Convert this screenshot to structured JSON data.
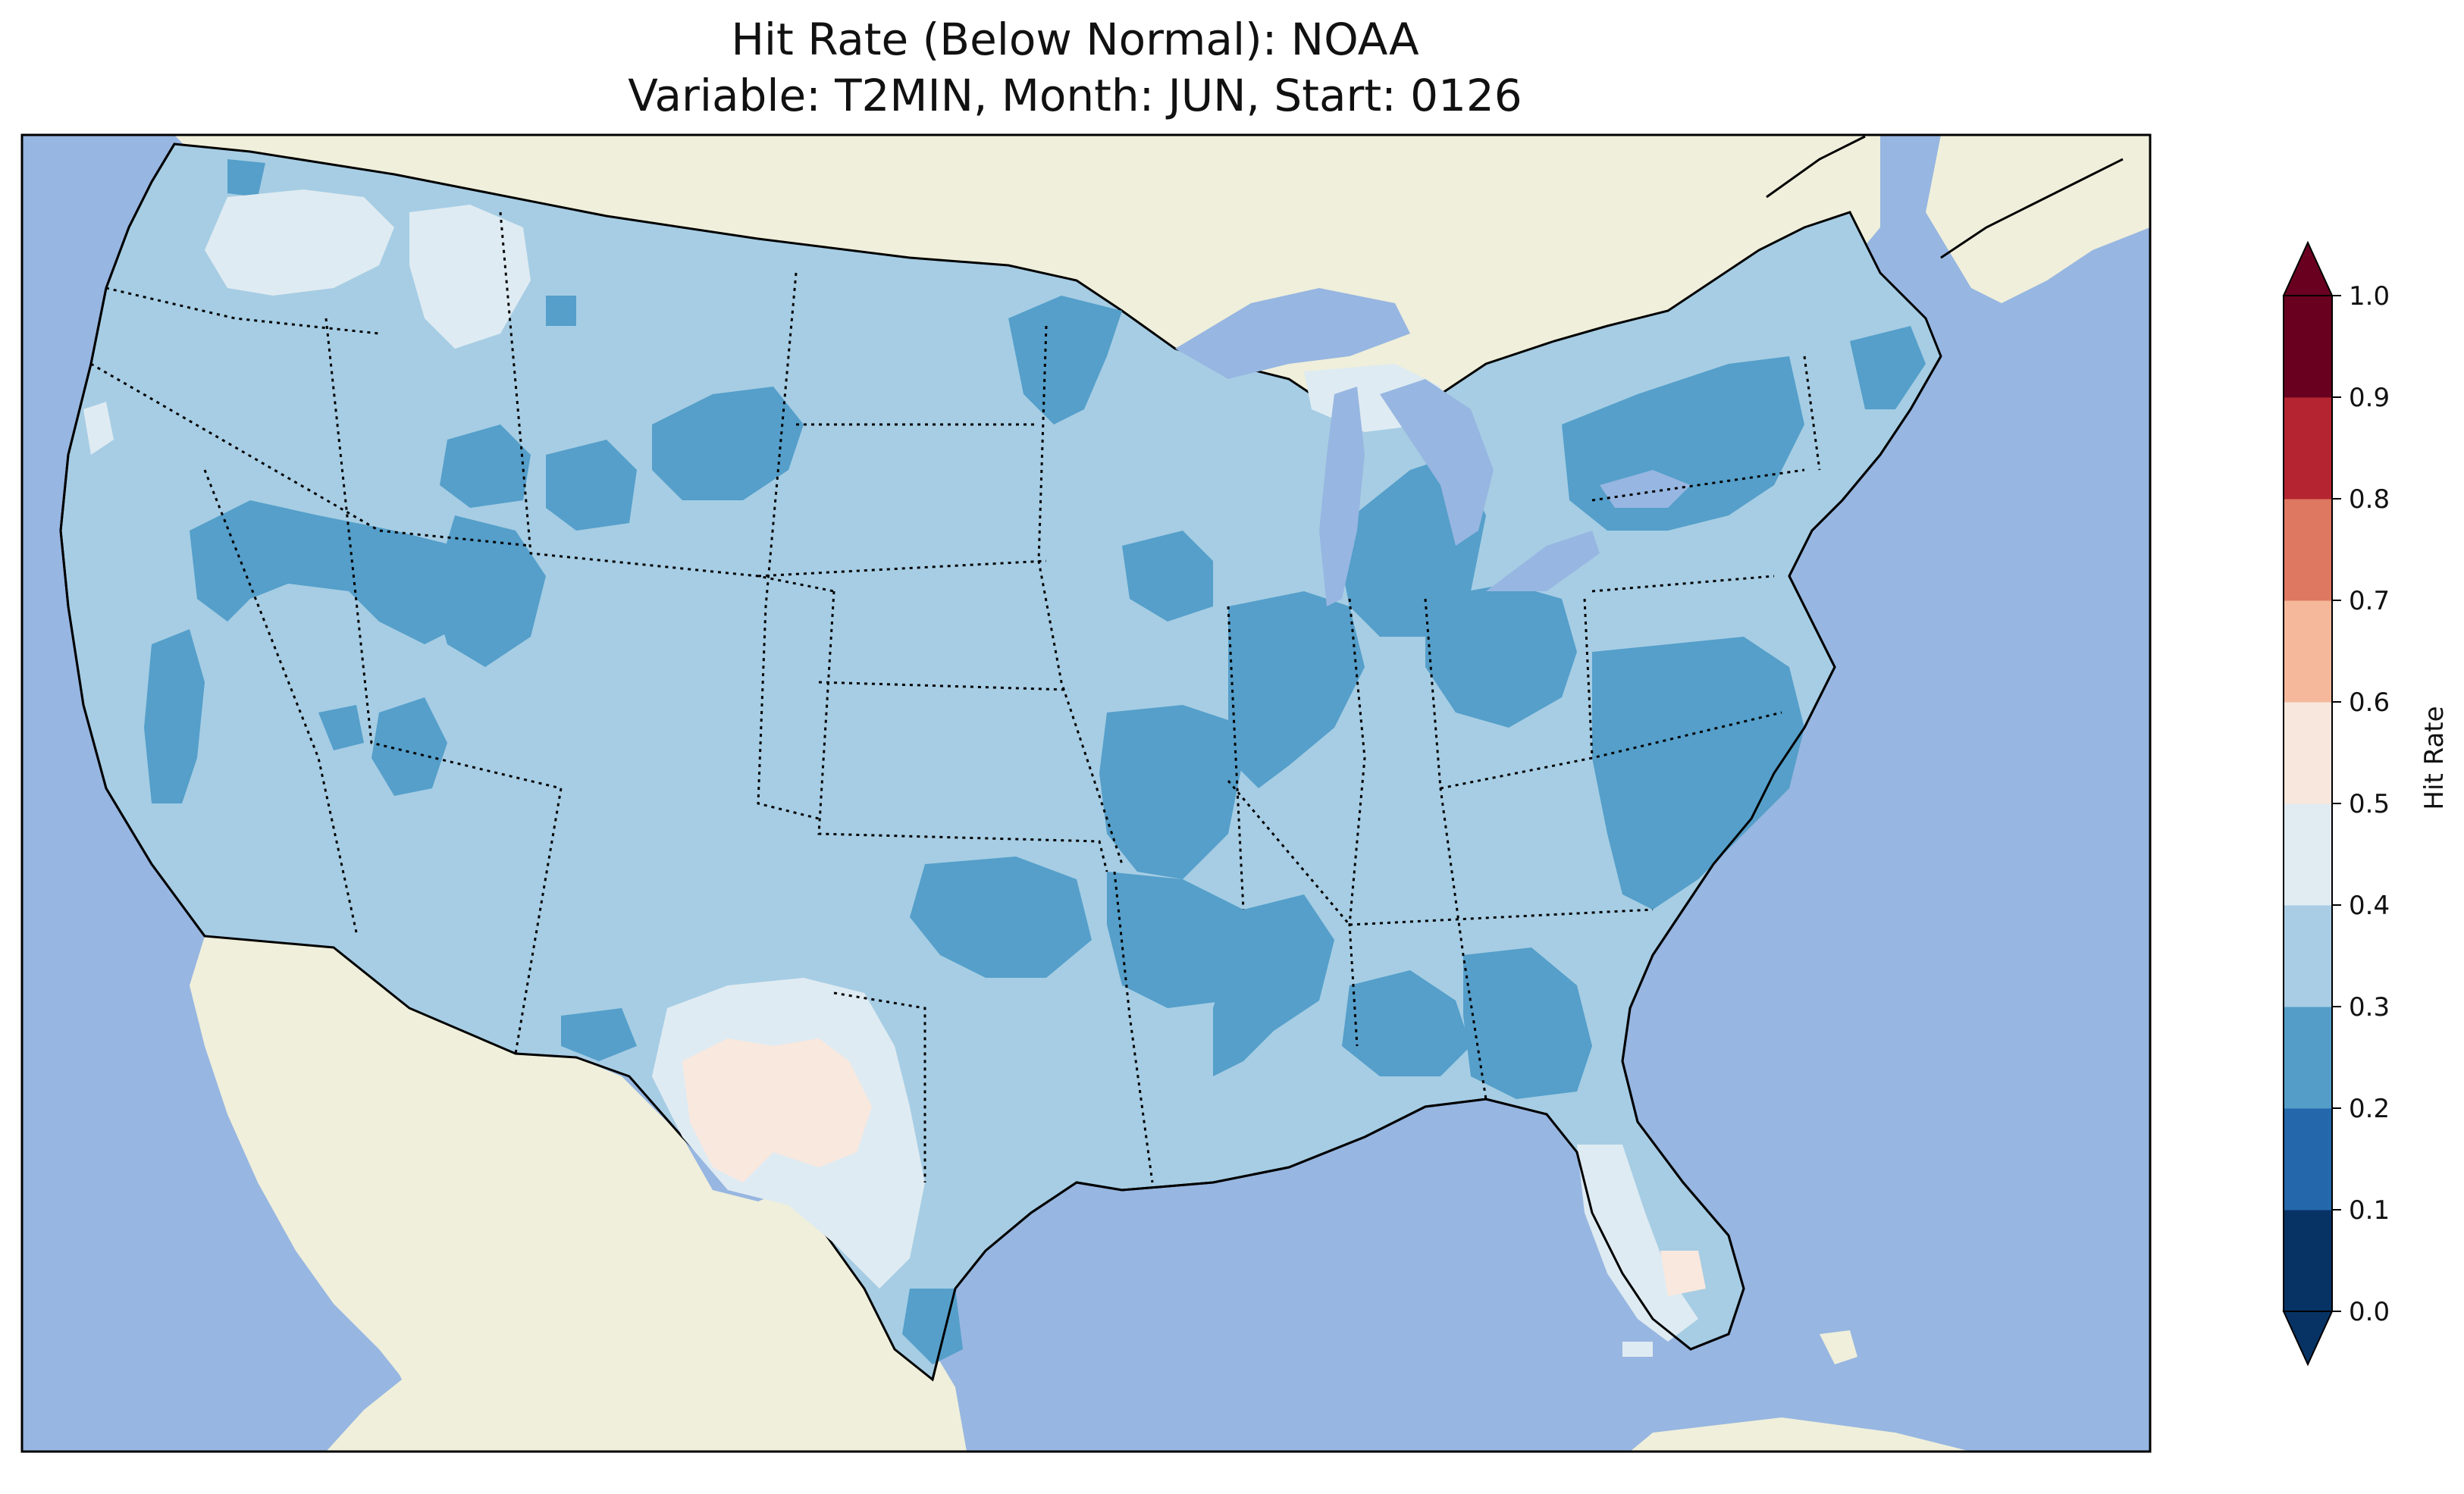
{
  "title_line1": "Hit Rate (Below Normal): NOAA",
  "title_line2": "Variable: T2MIN, Month: JUN, Start: 0126",
  "map": {
    "ocean_color": "#97b6e1",
    "land_color": "#efefdb",
    "regions": [
      {
        "name": "conus-base",
        "value_class": "0.3-0.4",
        "color": "#a6cde4"
      },
      {
        "name": "great-basin-band",
        "value_class": "0.2-0.3",
        "color": "#559fca"
      },
      {
        "name": "northern-rockies",
        "value_class": "0.4-0.5",
        "color": "#dfebf2"
      },
      {
        "name": "texas-center",
        "value_class": "0.5-0.6",
        "color": "#f9e8de"
      },
      {
        "name": "florida-center",
        "value_class": "0.5-0.6",
        "color": "#f9e8de"
      }
    ]
  },
  "colorbar": {
    "label": "Hit Rate",
    "ticks": [
      "0.0",
      "0.1",
      "0.2",
      "0.3",
      "0.4",
      "0.5",
      "0.6",
      "0.7",
      "0.8",
      "0.9",
      "1.0"
    ],
    "colors": [
      "#053061",
      "#2166ac",
      "#4393c3",
      "#92c5de",
      "#d1e5f0",
      "#f7f7f7",
      "#fddbc7",
      "#f4a582",
      "#d6604d",
      "#b2182b",
      "#67001f"
    ],
    "bins_colors": [
      "#073264",
      "#2467ab",
      "#549dc9",
      "#a8cde4",
      "#e0ebf2",
      "#f8e7dd",
      "#f5b89b",
      "#de7860",
      "#b52431",
      "#6a0020"
    ]
  }
}
